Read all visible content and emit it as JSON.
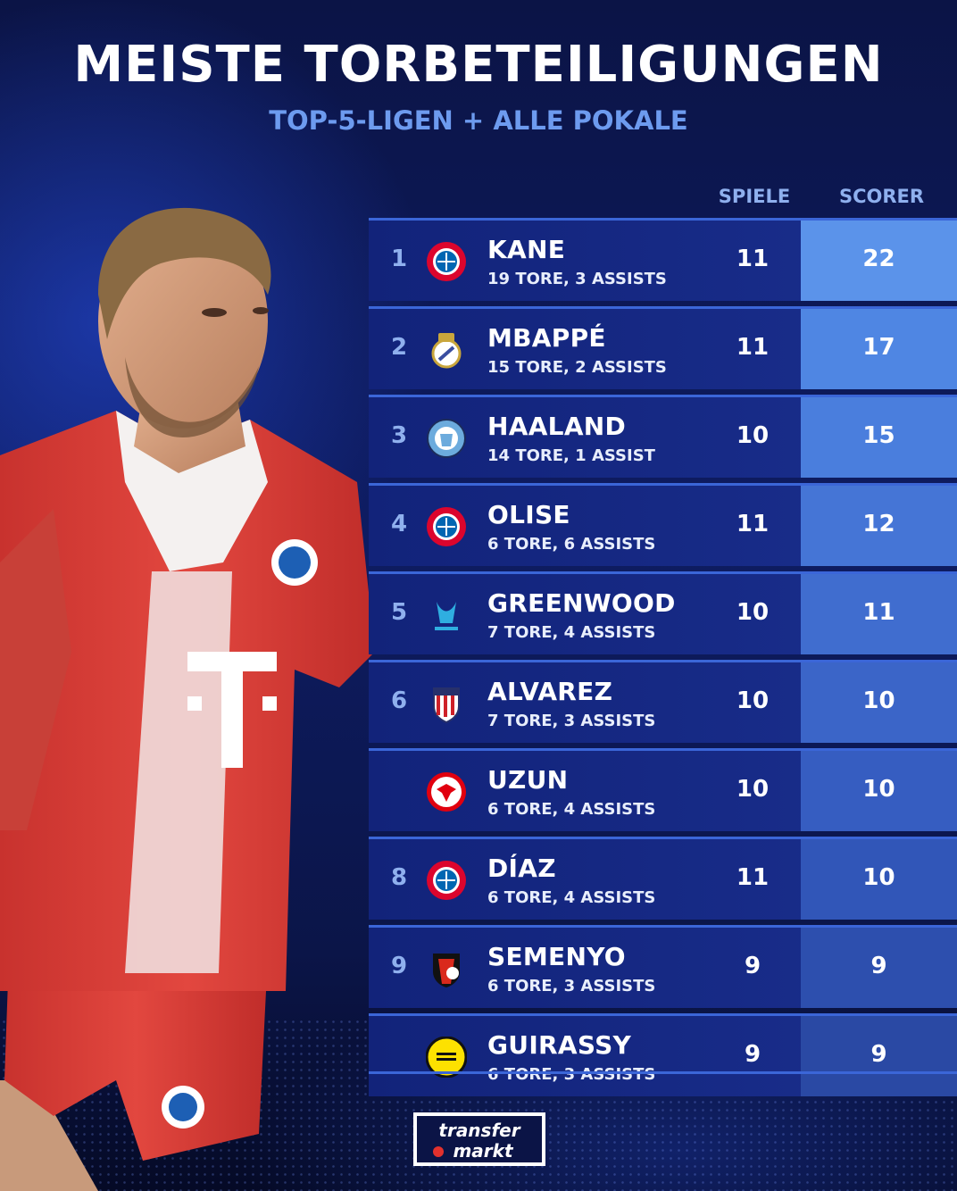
{
  "header": {
    "title": "MEISTE TORBETEILIGUNGEN",
    "subtitle": "TOP-5-LIGEN + ALLE POKALE"
  },
  "columns": {
    "games": "SPIELE",
    "scorer": "SCORER"
  },
  "rows": [
    {
      "rank": "1",
      "name": "KANE",
      "detail": "19 TORE, 3 ASSISTS",
      "games": "11",
      "points": "22",
      "crest": "bayern-crest-icon",
      "scorer_color": "#5b93ea"
    },
    {
      "rank": "2",
      "name": "MBAPPÉ",
      "detail": "15 TORE, 2 ASSISTS",
      "games": "11",
      "points": "17",
      "crest": "real-madrid-crest-icon",
      "scorer_color": "#4f86e3"
    },
    {
      "rank": "3",
      "name": "HAALAND",
      "detail": "14 TORE, 1 ASSIST",
      "games": "10",
      "points": "15",
      "crest": "man-city-crest-icon",
      "scorer_color": "#4a7edd"
    },
    {
      "rank": "4",
      "name": "OLISE",
      "detail": "6 TORE, 6 ASSISTS",
      "games": "11",
      "points": "12",
      "crest": "bayern-crest-icon",
      "scorer_color": "#4575d6"
    },
    {
      "rank": "5",
      "name": "GREENWOOD",
      "detail": "7 TORE, 4 ASSISTS",
      "games": "10",
      "points": "11",
      "crest": "marseille-crest-icon",
      "scorer_color": "#406dcf"
    },
    {
      "rank": "6",
      "name": "ALVAREZ",
      "detail": "7 TORE, 3 ASSISTS",
      "games": "10",
      "points": "10",
      "crest": "atletico-crest-icon",
      "scorer_color": "#3b65c8"
    },
    {
      "rank": "",
      "name": "UZUN",
      "detail": "6 TORE, 4 ASSISTS",
      "games": "10",
      "points": "10",
      "crest": "frankfurt-crest-icon",
      "scorer_color": "#365dc1"
    },
    {
      "rank": "8",
      "name": "DÍAZ",
      "detail": "6 TORE, 4 ASSISTS",
      "games": "11",
      "points": "10",
      "crest": "bayern-crest-icon",
      "scorer_color": "#3156b8"
    },
    {
      "rank": "9",
      "name": "SEMENYO",
      "detail": "6 TORE, 3 ASSISTS",
      "games": "9",
      "points": "9",
      "crest": "bournemouth-crest-icon",
      "scorer_color": "#2d4fae"
    },
    {
      "rank": "",
      "name": "GUIRASSY",
      "detail": "6 TORE, 3 ASSISTS",
      "games": "9",
      "points": "9",
      "crest": "dortmund-crest-icon",
      "scorer_color": "#2a49a4"
    }
  ],
  "logo": {
    "line1": "transfer",
    "line2": "markt"
  },
  "colors": {
    "background": "#0e1c62",
    "accent": "#3b66d8",
    "subtitle": "#6d9bef"
  }
}
